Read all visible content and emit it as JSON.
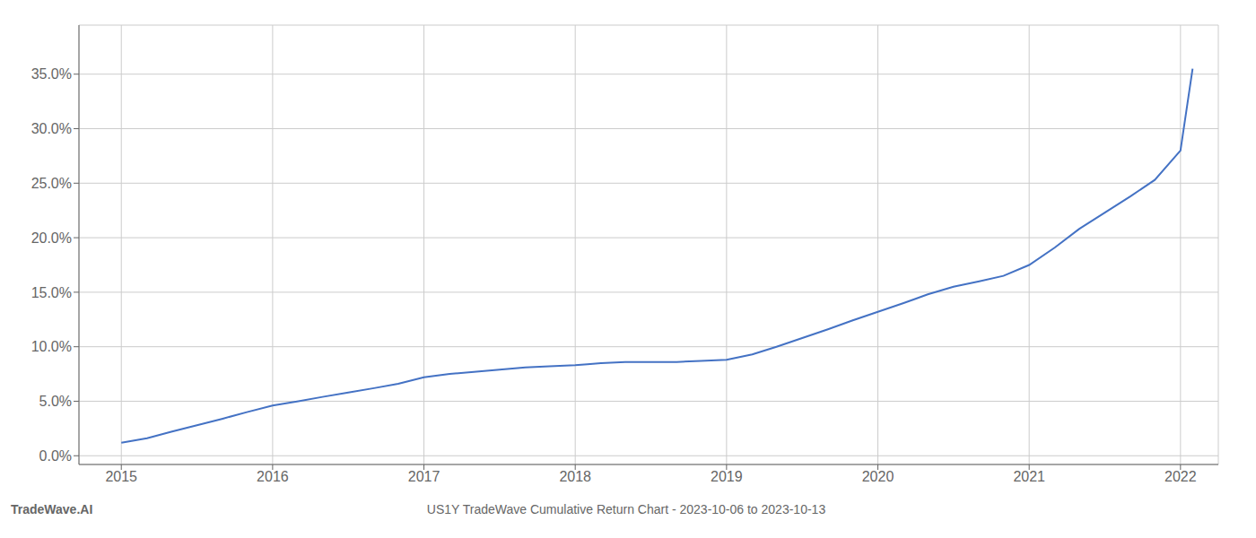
{
  "chart_data": {
    "type": "line",
    "title": "US1Y TradeWave Cumulative Return Chart - 2023-10-06 to 2023-10-13",
    "annotations": [
      "TradeWave.AI"
    ],
    "x": [
      2015.0,
      2015.17,
      2015.33,
      2015.5,
      2015.67,
      2015.83,
      2016.0,
      2016.17,
      2016.33,
      2016.5,
      2016.67,
      2016.83,
      2017.0,
      2017.17,
      2017.33,
      2017.5,
      2017.67,
      2017.83,
      2018.0,
      2018.08,
      2018.17,
      2018.33,
      2018.5,
      2018.67,
      2018.83,
      2019.0,
      2019.17,
      2019.33,
      2019.5,
      2019.67,
      2019.83,
      2020.0,
      2020.17,
      2020.33,
      2020.5,
      2020.67,
      2020.83,
      2021.0,
      2021.17,
      2021.33,
      2021.5,
      2021.67,
      2021.83,
      2022.0,
      2022.08
    ],
    "values": [
      0.012,
      0.016,
      0.022,
      0.028,
      0.034,
      0.04,
      0.046,
      0.05,
      0.054,
      0.058,
      0.062,
      0.066,
      0.072,
      0.075,
      0.077,
      0.079,
      0.081,
      0.082,
      0.083,
      0.084,
      0.085,
      0.086,
      0.086,
      0.086,
      0.087,
      0.088,
      0.093,
      0.1,
      0.108,
      0.116,
      0.124,
      0.132,
      0.14,
      0.148,
      0.155,
      0.16,
      0.165,
      0.175,
      0.191,
      0.208,
      0.223,
      0.238,
      0.253,
      0.28,
      0.355
    ],
    "color": "#4472c4",
    "xlim": [
      2014.72,
      2022.25
    ],
    "ylim": [
      -0.008,
      0.395
    ],
    "xticks": [
      2015,
      2016,
      2017,
      2018,
      2019,
      2020,
      2021,
      2022
    ],
    "yticks": [
      {
        "value": 0.0,
        "label": "0.0%"
      },
      {
        "value": 0.05,
        "label": "5.0%"
      },
      {
        "value": 0.1,
        "label": "10.0%"
      },
      {
        "value": 0.15,
        "label": "15.0%"
      },
      {
        "value": 0.2,
        "label": "20.0%"
      },
      {
        "value": 0.25,
        "label": "25.0%"
      },
      {
        "value": 0.3,
        "label": "30.0%"
      },
      {
        "value": 0.35,
        "label": "35.0%"
      }
    ],
    "grid": true
  }
}
